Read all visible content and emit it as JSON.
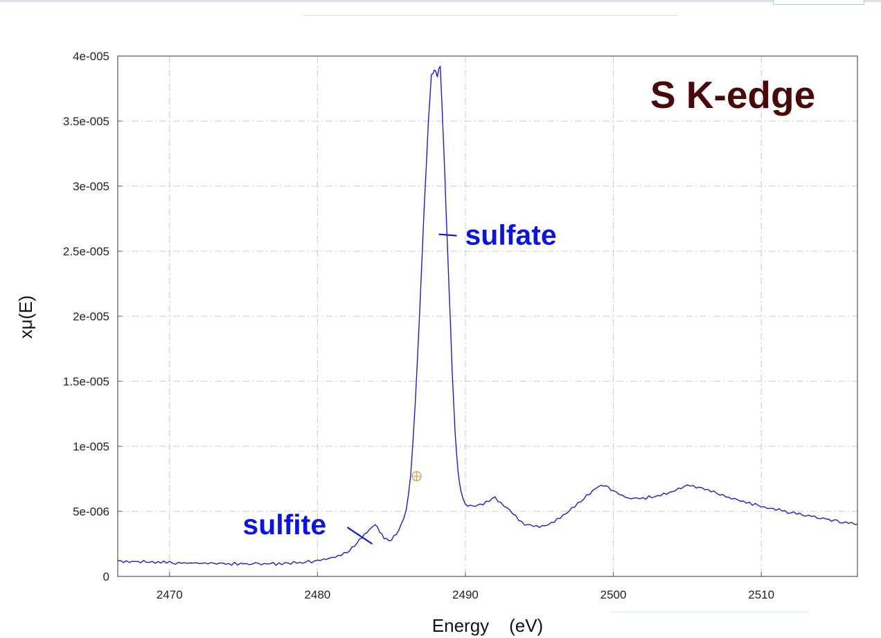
{
  "chart_data": {
    "type": "line",
    "title": "S K-edge",
    "xlabel": "Energy    (eV)",
    "ylabel": "xμ(E)",
    "xlim": [
      2466.5,
      2516.5
    ],
    "ylim": [
      0,
      4e-05
    ],
    "x_ticks": [
      2470,
      2480,
      2490,
      2500,
      2510
    ],
    "x_tick_labels": [
      "2470",
      "2480",
      "2490",
      "2500",
      "2510"
    ],
    "y_ticks": [
      0,
      5e-06,
      1e-05,
      1.5e-05,
      2e-05,
      2.5e-05,
      3e-05,
      3.5e-05,
      4e-05
    ],
    "y_tick_labels": [
      "0",
      "5e-006",
      "1e-005",
      "1.5e-005",
      "2e-005",
      "2.5e-005",
      "3e-005",
      "3.5e-005",
      "4e-005"
    ],
    "grid": true,
    "series": [
      {
        "color": "#1a1adc",
        "x": [
          2466.5,
          2470,
          2473,
          2476,
          2478,
          2480,
          2481,
          2482,
          2482.5,
          2483,
          2483.5,
          2483.9,
          2484.2,
          2484.5,
          2485,
          2485.5,
          2486,
          2486.3,
          2486.6,
          2486.9,
          2487.2,
          2487.5,
          2487.7,
          2487.9,
          2488.1,
          2488.3,
          2488.5,
          2488.7,
          2488.9,
          2489.1,
          2489.3,
          2489.5,
          2489.7,
          2490,
          2490.5,
          2491,
          2492,
          2493,
          2494,
          2495,
          2496,
          2497,
          2498,
          2499,
          2499.5,
          2500,
          2501,
          2502,
          2503,
          2504,
          2505,
          2506,
          2507,
          2508,
          2510,
          2512,
          2514,
          2515.5,
          2516.5
        ],
        "y": [
          1.2e-06,
          1.05e-06,
          1e-06,
          9.5e-07,
          1e-06,
          1.2e-06,
          1.4e-06,
          1.8e-06,
          2.4e-06,
          3e-06,
          3.6e-06,
          4e-06,
          3.5e-06,
          2.9e-06,
          2.8e-06,
          3.5e-06,
          5e-06,
          7.7e-06,
          1.3e-05,
          2e-05,
          2.8e-05,
          3.5e-05,
          3.85e-05,
          3.9e-05,
          3.85e-05,
          3.93e-05,
          3.4e-05,
          2.8e-05,
          2.2e-05,
          1.6e-05,
          1.1e-05,
          8e-06,
          6.5e-06,
          5.5e-06,
          5.4e-06,
          5.5e-06,
          6e-06,
          5e-06,
          4e-06,
          3.8e-06,
          4.2e-06,
          5e-06,
          6e-06,
          7e-06,
          7e-06,
          6.5e-06,
          6e-06,
          6e-06,
          6.2e-06,
          6.5e-06,
          7e-06,
          6.8e-06,
          6.4e-06,
          6e-06,
          5.4e-06,
          4.9e-06,
          4.5e-06,
          4.2e-06,
          4e-06
        ]
      }
    ],
    "marker": {
      "x": 2486.7,
      "y": 7.7e-06,
      "color": "#e6a055"
    },
    "annotations": [
      {
        "text": "sulfate",
        "color": "#0a14e6",
        "pointer_x": 2488.2,
        "pointer_y": 2.63e-05
      },
      {
        "text": "sulfite",
        "color": "#0a14e6",
        "pointer_x": 2483.7,
        "pointer_y": 2.5e-06
      }
    ],
    "title_color": "#4a0808"
  }
}
